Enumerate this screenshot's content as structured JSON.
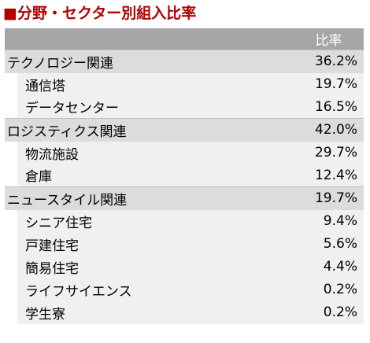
{
  "title": {
    "bullet": "■",
    "text": "分野・セクター別組入比率"
  },
  "header": {
    "ratio_label": "比率"
  },
  "categories": [
    {
      "name": "テクノロジー関連",
      "value": "36.2%",
      "items": [
        {
          "name": "通信塔",
          "value": "19.7%"
        },
        {
          "name": "データセンター",
          "value": "16.5%"
        }
      ]
    },
    {
      "name": "ロジスティクス関連",
      "value": "42.0%",
      "items": [
        {
          "name": "物流施設",
          "value": "29.7%"
        },
        {
          "name": "倉庫",
          "value": "12.4%"
        }
      ]
    },
    {
      "name": "ニュースタイル関連",
      "value": "19.7%",
      "items": [
        {
          "name": "シニア住宅",
          "value": "9.4%"
        },
        {
          "name": "戸建住宅",
          "value": "5.6%"
        },
        {
          "name": "簡易住宅",
          "value": "4.4%"
        },
        {
          "name": "ライフサイエンス",
          "value": "0.2%"
        },
        {
          "name": "学生寮",
          "value": "0.2%"
        }
      ]
    }
  ],
  "colors": {
    "title": "#b00000",
    "header_bg": "#a6a6a6",
    "category_bg": "#dcdcdc",
    "subitem_bg": "#f0f0f0"
  }
}
